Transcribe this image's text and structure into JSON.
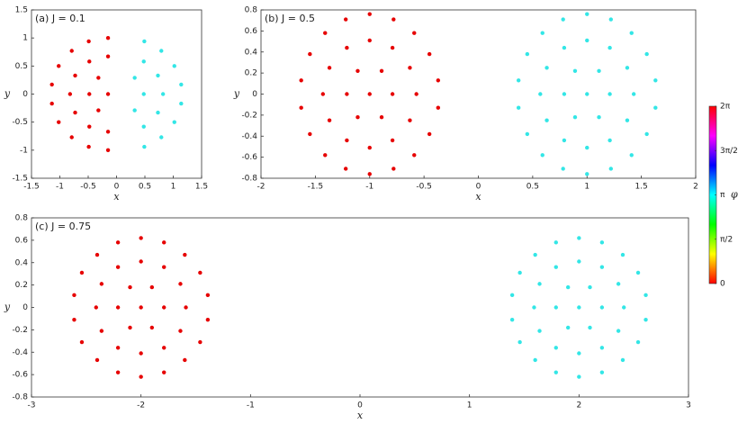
{
  "chart_data": [
    {
      "type": "scatter",
      "title": "(a)  J = 0.1",
      "xlabel": "x",
      "ylabel": "y",
      "xlim": [
        -1.5,
        1.5
      ],
      "ylim": [
        -1.5,
        1.5
      ],
      "xticks": [
        -1.5,
        -1,
        -0.5,
        0,
        0.5,
        1,
        1.5
      ],
      "yticks": [
        -1.5,
        -1,
        -0.5,
        0,
        0.5,
        1,
        1.5
      ],
      "series": [
        {
          "color": "#e60000",
          "x": [
            -0.15,
            -0.32,
            -0.48,
            -0.32,
            -0.15,
            -0.48,
            -0.73,
            -0.82,
            -0.73,
            -0.48,
            -0.15,
            -0.15,
            -0.49,
            -0.79,
            -1.02,
            -1.14,
            -1.14,
            -1.02,
            -0.79,
            -0.49,
            -0.15
          ],
          "values": [
            0,
            0.29,
            0,
            -0.29,
            0.67,
            0.58,
            0.33,
            0,
            -0.33,
            -0.58,
            -0.67,
            1,
            0.94,
            0.77,
            0.5,
            0.17,
            -0.17,
            -0.5,
            -0.77,
            -0.94,
            -1
          ]
        },
        {
          "color": "#33e6e6",
          "x": [
            0.48,
            0.32,
            0.32,
            0.82,
            0.73,
            0.48,
            0.48,
            0.73,
            1.14,
            1.02,
            0.79,
            0.49,
            0.49,
            0.79,
            1.02,
            1.14
          ],
          "values": [
            0,
            0.29,
            -0.29,
            0,
            0.33,
            0.58,
            -0.58,
            -0.33,
            0.17,
            0.5,
            0.77,
            0.94,
            -0.94,
            -0.77,
            -0.5,
            -0.17
          ]
        }
      ]
    },
    {
      "type": "scatter",
      "title": "(b)  J = 0.5",
      "xlabel": "x",
      "ylabel": "y",
      "xlim": [
        -2,
        2
      ],
      "ylim": [
        -0.8,
        0.8
      ],
      "xticks": [
        -2,
        -1.5,
        -1,
        -0.5,
        0,
        0.5,
        1,
        1.5,
        2
      ],
      "yticks": [
        -0.8,
        -0.6,
        -0.4,
        -0.2,
        0,
        0.2,
        0.4,
        0.6,
        0.8
      ],
      "series": [
        {
          "color": "#e60000",
          "x": [
            -1,
            -0.79,
            -0.89,
            -1.11,
            -1.21,
            -1.11,
            -0.89,
            -0.57,
            -0.63,
            -0.79,
            -1,
            -1.21,
            -1.37,
            -1.43,
            -1.37,
            -1.21,
            -1,
            -0.79,
            -0.63,
            -0.37,
            -0.45,
            -0.59,
            -0.78,
            -1,
            -1.22,
            -1.41,
            -1.55,
            -1.63,
            -1.63,
            -1.55,
            -1.41,
            -1.22,
            -1,
            -0.78,
            -0.59,
            -0.45,
            -0.37
          ],
          "values": [
            0,
            0,
            0.22,
            0.22,
            0,
            -0.22,
            -0.22,
            0,
            0.25,
            0.44,
            0.51,
            0.44,
            0.25,
            0,
            -0.25,
            -0.44,
            -0.51,
            -0.44,
            -0.25,
            0.13,
            0.38,
            0.58,
            0.71,
            0.76,
            0.71,
            0.58,
            0.38,
            0.13,
            -0.13,
            -0.38,
            -0.58,
            -0.71,
            -0.76,
            -0.71,
            -0.58,
            -0.38,
            -0.13
          ]
        },
        {
          "color": "#33e6e6",
          "x": [
            1,
            1.21,
            1.11,
            0.89,
            0.79,
            0.89,
            1.11,
            1.43,
            1.37,
            1.21,
            1,
            0.79,
            0.63,
            0.57,
            0.63,
            0.79,
            1,
            1.21,
            1.37,
            1.63,
            1.55,
            1.41,
            1.22,
            1,
            0.78,
            0.59,
            0.45,
            0.37,
            0.37,
            0.45,
            0.59,
            0.78,
            1,
            1.22,
            1.41,
            1.55,
            1.63
          ],
          "values": [
            0,
            0,
            0.22,
            0.22,
            0,
            -0.22,
            -0.22,
            0,
            0.25,
            0.44,
            0.51,
            0.44,
            0.25,
            0,
            -0.25,
            -0.44,
            -0.51,
            -0.44,
            -0.25,
            0.13,
            0.38,
            0.58,
            0.71,
            0.76,
            0.71,
            0.58,
            0.38,
            0.13,
            -0.13,
            -0.38,
            -0.58,
            -0.71,
            -0.76,
            -0.71,
            -0.58,
            -0.38,
            -0.13
          ]
        }
      ]
    },
    {
      "type": "scatter",
      "title": "(c)  J = 0.75",
      "xlabel": "x",
      "ylabel": "y",
      "xlim": [
        -3,
        3
      ],
      "ylim": [
        -0.8,
        0.8
      ],
      "xticks": [
        -3,
        -2,
        -1,
        0,
        1,
        2,
        3
      ],
      "yticks": [
        -0.8,
        -0.6,
        -0.4,
        -0.2,
        0,
        0.2,
        0.4,
        0.6,
        0.8
      ],
      "series": [
        {
          "color": "#e60000",
          "x": [
            -2,
            -1.79,
            -1.9,
            -2.1,
            -2.21,
            -2.1,
            -1.9,
            -1.59,
            -1.64,
            -1.79,
            -2,
            -2.21,
            -2.36,
            -2.41,
            -2.36,
            -2.21,
            -2,
            -1.79,
            -1.64,
            -1.39,
            -1.46,
            -1.6,
            -1.79,
            -2,
            -2.21,
            -2.4,
            -2.54,
            -2.61,
            -2.61,
            -2.54,
            -2.4,
            -2.21,
            -2,
            -1.79,
            -1.6,
            -1.46,
            -1.39
          ],
          "values": [
            0,
            0,
            0.18,
            0.18,
            0,
            -0.18,
            -0.18,
            0,
            0.21,
            0.36,
            0.41,
            0.36,
            0.21,
            0,
            -0.21,
            -0.36,
            -0.41,
            -0.36,
            -0.21,
            0.11,
            0.31,
            0.47,
            0.58,
            0.62,
            0.58,
            0.47,
            0.31,
            0.11,
            -0.11,
            -0.31,
            -0.47,
            -0.58,
            -0.62,
            -0.58,
            -0.47,
            -0.31,
            -0.11
          ]
        },
        {
          "color": "#33e6e6",
          "x": [
            2,
            2.21,
            2.1,
            1.9,
            1.79,
            1.9,
            2.1,
            2.41,
            2.36,
            2.21,
            2,
            1.79,
            1.64,
            1.59,
            1.64,
            1.79,
            2,
            2.21,
            2.36,
            2.61,
            2.54,
            2.4,
            2.21,
            2,
            1.79,
            1.6,
            1.46,
            1.39,
            1.39,
            1.46,
            1.6,
            1.79,
            2,
            2.21,
            2.4,
            2.54,
            2.61
          ],
          "values": [
            0,
            0,
            0.18,
            0.18,
            0,
            -0.18,
            -0.18,
            0,
            0.21,
            0.36,
            0.41,
            0.36,
            0.21,
            0,
            -0.21,
            -0.36,
            -0.41,
            -0.36,
            -0.21,
            0.11,
            0.31,
            0.47,
            0.58,
            0.62,
            0.58,
            0.47,
            0.31,
            0.11,
            -0.11,
            -0.31,
            -0.47,
            -0.58,
            -0.62,
            -0.58,
            -0.47,
            -0.31,
            -0.11
          ]
        }
      ]
    },
    {
      "type": "colorbar",
      "label": "φ",
      "colormap": "hsv",
      "ylim": [
        0,
        6.2832
      ],
      "yticks": [
        0,
        {
          "value": 1.5708,
          "label": "π/2"
        },
        {
          "value": 3.1416,
          "label": "π"
        },
        {
          "value": 4.7124,
          "label": "3π/2"
        },
        {
          "value": 6.2832,
          "label": "2π"
        }
      ]
    }
  ]
}
